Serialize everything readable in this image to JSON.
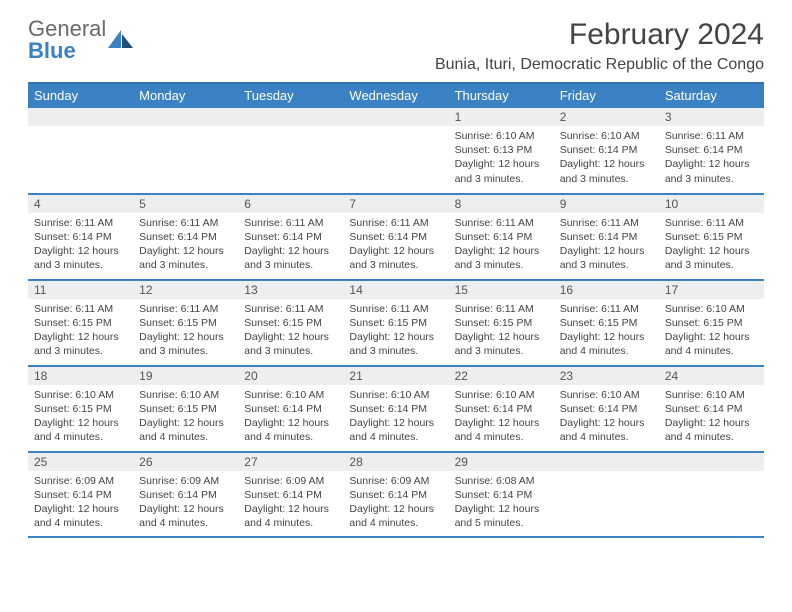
{
  "logo": {
    "top": "General",
    "bottom": "Blue"
  },
  "title": "February 2024",
  "location": "Bunia, Ituri, Democratic Republic of the Congo",
  "colors": {
    "header_bg": "#3b82c4",
    "header_text": "#ffffff",
    "grid_line": "#3b82c4",
    "daynum_bg": "#eceeef",
    "body_text": "#444444",
    "logo_gray": "#6a6a6a",
    "logo_blue": "#3b82c4"
  },
  "weekdays": [
    "Sunday",
    "Monday",
    "Tuesday",
    "Wednesday",
    "Thursday",
    "Friday",
    "Saturday"
  ],
  "weeks": [
    [
      null,
      null,
      null,
      null,
      {
        "n": "1",
        "sr": "Sunrise: 6:10 AM",
        "ss": "Sunset: 6:13 PM",
        "dl": "Daylight: 12 hours and 3 minutes."
      },
      {
        "n": "2",
        "sr": "Sunrise: 6:10 AM",
        "ss": "Sunset: 6:14 PM",
        "dl": "Daylight: 12 hours and 3 minutes."
      },
      {
        "n": "3",
        "sr": "Sunrise: 6:11 AM",
        "ss": "Sunset: 6:14 PM",
        "dl": "Daylight: 12 hours and 3 minutes."
      }
    ],
    [
      {
        "n": "4",
        "sr": "Sunrise: 6:11 AM",
        "ss": "Sunset: 6:14 PM",
        "dl": "Daylight: 12 hours and 3 minutes."
      },
      {
        "n": "5",
        "sr": "Sunrise: 6:11 AM",
        "ss": "Sunset: 6:14 PM",
        "dl": "Daylight: 12 hours and 3 minutes."
      },
      {
        "n": "6",
        "sr": "Sunrise: 6:11 AM",
        "ss": "Sunset: 6:14 PM",
        "dl": "Daylight: 12 hours and 3 minutes."
      },
      {
        "n": "7",
        "sr": "Sunrise: 6:11 AM",
        "ss": "Sunset: 6:14 PM",
        "dl": "Daylight: 12 hours and 3 minutes."
      },
      {
        "n": "8",
        "sr": "Sunrise: 6:11 AM",
        "ss": "Sunset: 6:14 PM",
        "dl": "Daylight: 12 hours and 3 minutes."
      },
      {
        "n": "9",
        "sr": "Sunrise: 6:11 AM",
        "ss": "Sunset: 6:14 PM",
        "dl": "Daylight: 12 hours and 3 minutes."
      },
      {
        "n": "10",
        "sr": "Sunrise: 6:11 AM",
        "ss": "Sunset: 6:15 PM",
        "dl": "Daylight: 12 hours and 3 minutes."
      }
    ],
    [
      {
        "n": "11",
        "sr": "Sunrise: 6:11 AM",
        "ss": "Sunset: 6:15 PM",
        "dl": "Daylight: 12 hours and 3 minutes."
      },
      {
        "n": "12",
        "sr": "Sunrise: 6:11 AM",
        "ss": "Sunset: 6:15 PM",
        "dl": "Daylight: 12 hours and 3 minutes."
      },
      {
        "n": "13",
        "sr": "Sunrise: 6:11 AM",
        "ss": "Sunset: 6:15 PM",
        "dl": "Daylight: 12 hours and 3 minutes."
      },
      {
        "n": "14",
        "sr": "Sunrise: 6:11 AM",
        "ss": "Sunset: 6:15 PM",
        "dl": "Daylight: 12 hours and 3 minutes."
      },
      {
        "n": "15",
        "sr": "Sunrise: 6:11 AM",
        "ss": "Sunset: 6:15 PM",
        "dl": "Daylight: 12 hours and 3 minutes."
      },
      {
        "n": "16",
        "sr": "Sunrise: 6:11 AM",
        "ss": "Sunset: 6:15 PM",
        "dl": "Daylight: 12 hours and 4 minutes."
      },
      {
        "n": "17",
        "sr": "Sunrise: 6:10 AM",
        "ss": "Sunset: 6:15 PM",
        "dl": "Daylight: 12 hours and 4 minutes."
      }
    ],
    [
      {
        "n": "18",
        "sr": "Sunrise: 6:10 AM",
        "ss": "Sunset: 6:15 PM",
        "dl": "Daylight: 12 hours and 4 minutes."
      },
      {
        "n": "19",
        "sr": "Sunrise: 6:10 AM",
        "ss": "Sunset: 6:15 PM",
        "dl": "Daylight: 12 hours and 4 minutes."
      },
      {
        "n": "20",
        "sr": "Sunrise: 6:10 AM",
        "ss": "Sunset: 6:14 PM",
        "dl": "Daylight: 12 hours and 4 minutes."
      },
      {
        "n": "21",
        "sr": "Sunrise: 6:10 AM",
        "ss": "Sunset: 6:14 PM",
        "dl": "Daylight: 12 hours and 4 minutes."
      },
      {
        "n": "22",
        "sr": "Sunrise: 6:10 AM",
        "ss": "Sunset: 6:14 PM",
        "dl": "Daylight: 12 hours and 4 minutes."
      },
      {
        "n": "23",
        "sr": "Sunrise: 6:10 AM",
        "ss": "Sunset: 6:14 PM",
        "dl": "Daylight: 12 hours and 4 minutes."
      },
      {
        "n": "24",
        "sr": "Sunrise: 6:10 AM",
        "ss": "Sunset: 6:14 PM",
        "dl": "Daylight: 12 hours and 4 minutes."
      }
    ],
    [
      {
        "n": "25",
        "sr": "Sunrise: 6:09 AM",
        "ss": "Sunset: 6:14 PM",
        "dl": "Daylight: 12 hours and 4 minutes."
      },
      {
        "n": "26",
        "sr": "Sunrise: 6:09 AM",
        "ss": "Sunset: 6:14 PM",
        "dl": "Daylight: 12 hours and 4 minutes."
      },
      {
        "n": "27",
        "sr": "Sunrise: 6:09 AM",
        "ss": "Sunset: 6:14 PM",
        "dl": "Daylight: 12 hours and 4 minutes."
      },
      {
        "n": "28",
        "sr": "Sunrise: 6:09 AM",
        "ss": "Sunset: 6:14 PM",
        "dl": "Daylight: 12 hours and 4 minutes."
      },
      {
        "n": "29",
        "sr": "Sunrise: 6:08 AM",
        "ss": "Sunset: 6:14 PM",
        "dl": "Daylight: 12 hours and 5 minutes."
      },
      null,
      null
    ]
  ]
}
